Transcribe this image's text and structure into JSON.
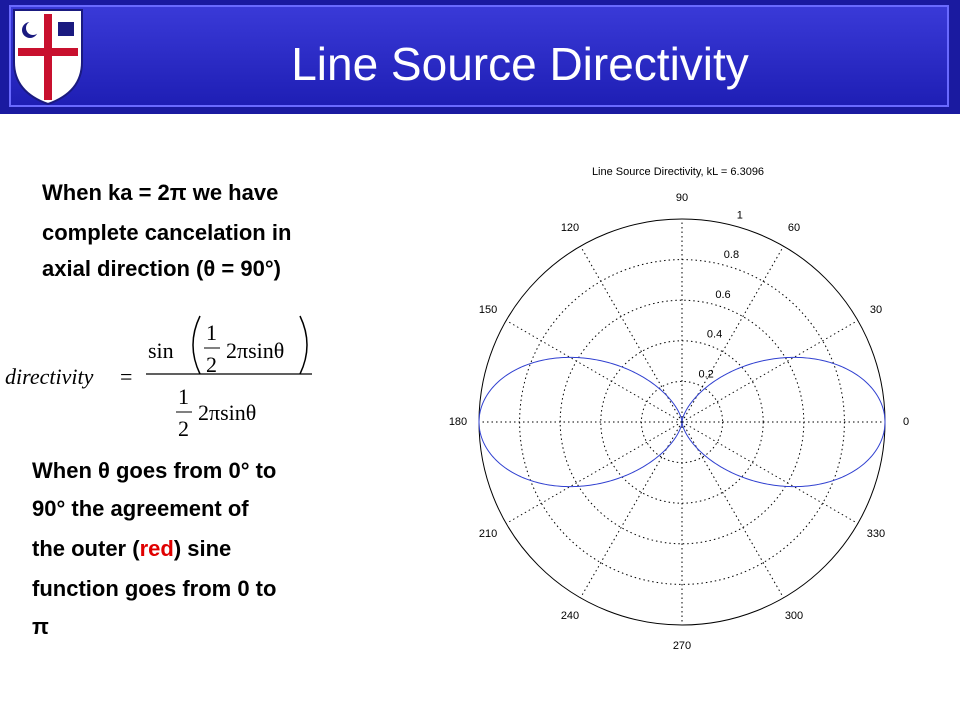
{
  "header": {
    "title": "Line Source Directivity"
  },
  "text_1": {
    "lines": [
      "When ka = 2π we have",
      "complete cancelation in",
      "axial direction (θ = 90°)"
    ]
  },
  "formula": {
    "lhs": "directivity",
    "equals": "=",
    "fn": "sin",
    "num_half_top": "1",
    "num_half_bottom": "2",
    "num_arg": "2πsinθ",
    "den_half_top": "1",
    "den_half_bottom": "2",
    "den_arg": "2πsinθ"
  },
  "text_2": {
    "lines": [
      "When θ goes from 0° to",
      "90° the agreement of"
    ],
    "line_3": {
      "before": "the outer (",
      "highlight": "red",
      "after": ") sine"
    },
    "lines_end": [
      "function goes from 0 to",
      "π"
    ]
  },
  "polar_plot": {
    "title": "Line Source Directivity, kL = 6.3096",
    "angle_ticks": [
      0,
      30,
      60,
      90,
      120,
      150,
      180,
      210,
      240,
      270,
      300,
      330
    ],
    "rticks": [
      0.2,
      0.4,
      0.6,
      0.8,
      1
    ],
    "rlim": [
      0,
      1
    ]
  }
}
